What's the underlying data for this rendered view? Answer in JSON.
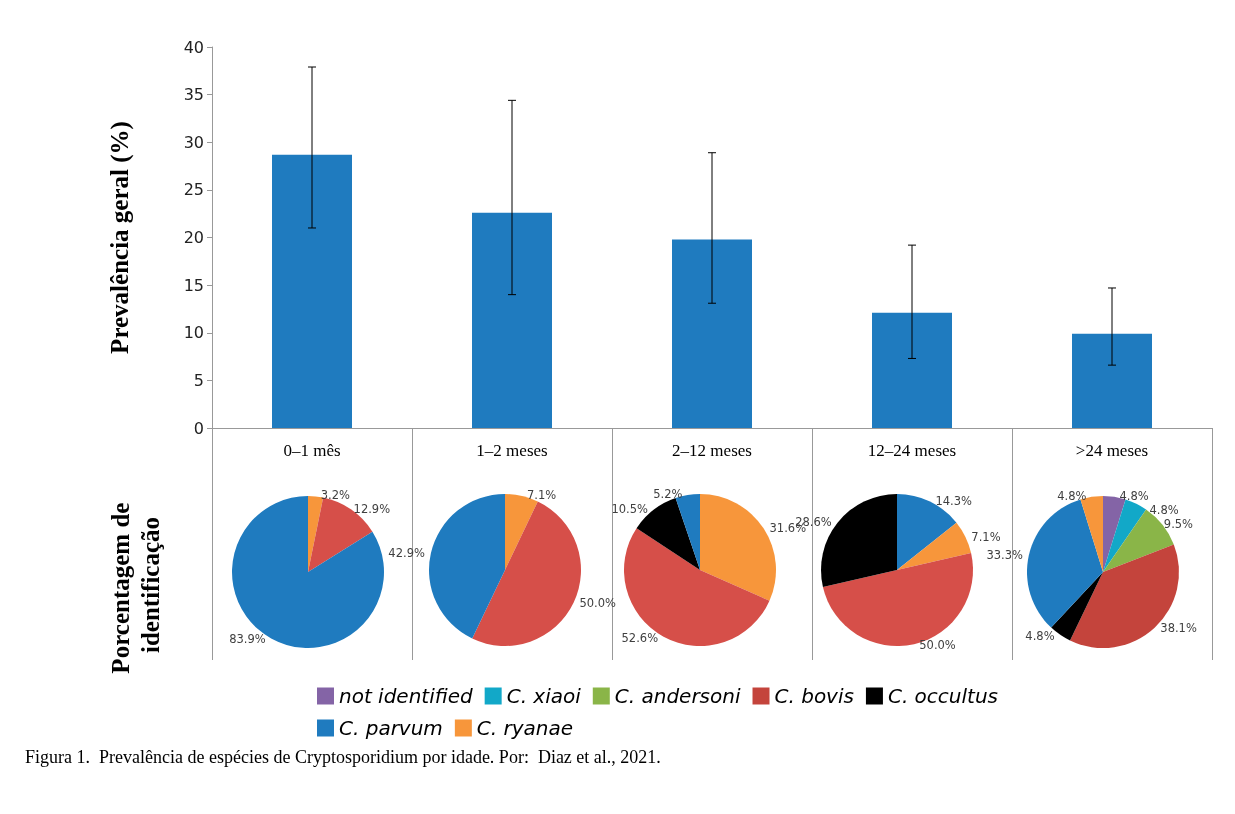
{
  "chart_data": [
    {
      "type": "bar",
      "ylabel": "Prevalência geral (%)",
      "categories": [
        "0–1 mês",
        "1–2 meses",
        "2–12 meses",
        "12–24 meses",
        ">24 meses"
      ],
      "values": [
        28.7,
        22.6,
        19.8,
        12.1,
        9.9
      ],
      "color": "#1f7bbf",
      "errors": [
        [
          21.0,
          37.9
        ],
        [
          14.0,
          34.4
        ],
        [
          13.1,
          28.9
        ],
        [
          7.3,
          19.2
        ],
        [
          6.6,
          14.7
        ]
      ],
      "ylim": [
        0,
        40
      ],
      "yticks": [
        0,
        5,
        10,
        15,
        20,
        25,
        30,
        35,
        40
      ],
      "grid": false,
      "legend": false,
      "annotations": [
        "Figura 1.  Prevalência de espécies de Cryptosporidium por idade. Por:  Diaz et al., 2021."
      ]
    },
    {
      "type": "pie",
      "ylabel": "Porcentagem de identificação",
      "categories": [
        null,
        null,
        null
      ],
      "values": [
        3.2,
        12.9,
        83.9
      ],
      "colors": [
        "#f7963b",
        "#d64f49",
        "#1f7bbf"
      ],
      "value_labels": [
        "3.2%",
        "12.9%",
        "83.9%"
      ],
      "legend": false
    },
    {
      "type": "pie",
      "categories": [
        null,
        null,
        null
      ],
      "values": [
        7.1,
        50.0,
        42.9
      ],
      "colors": [
        "#f7963b",
        "#d64f49",
        "#1f7bbf"
      ],
      "value_labels": [
        "7.1%",
        "50.0%",
        "42.9%"
      ],
      "legend": false
    },
    {
      "type": "pie",
      "categories": [
        null,
        null,
        null,
        null
      ],
      "values": [
        31.6,
        52.6,
        10.5,
        5.2
      ],
      "colors": [
        "#f7963b",
        "#d64f49",
        "#000000",
        "#1f7bbf"
      ],
      "value_labels": [
        "31.6%",
        "52.6%",
        "10.5%",
        "5.2%"
      ],
      "legend": false
    },
    {
      "type": "pie",
      "categories": [
        null,
        null,
        null,
        null
      ],
      "values": [
        14.3,
        7.1,
        50.0,
        28.6
      ],
      "colors": [
        "#1f7bbf",
        "#f7963b",
        "#d64f49",
        "#000000"
      ],
      "value_labels": [
        "14.3%",
        "7.1%",
        "50.0%",
        "28.6%"
      ],
      "legend": false
    },
    {
      "type": "pie",
      "categories": [
        "not identified",
        "C. xiaoi",
        "C. andersoni",
        "C. bovis",
        "C. occultus",
        "C. parvum",
        "C. ryanae"
      ],
      "values": [
        4.8,
        4.8,
        9.5,
        38.1,
        4.8,
        33.3,
        4.8
      ],
      "colors": [
        "#8464a6",
        "#12a8c8",
        "#8ab548",
        "#c4443c",
        "#000000",
        "#1f7bbf",
        "#f7963b"
      ],
      "value_labels": [
        "4.8%",
        "4.8%",
        "9.5%",
        "38.1%",
        "4.8%",
        "33.3%",
        "4.8%"
      ],
      "legend": "bottom"
    }
  ]
}
